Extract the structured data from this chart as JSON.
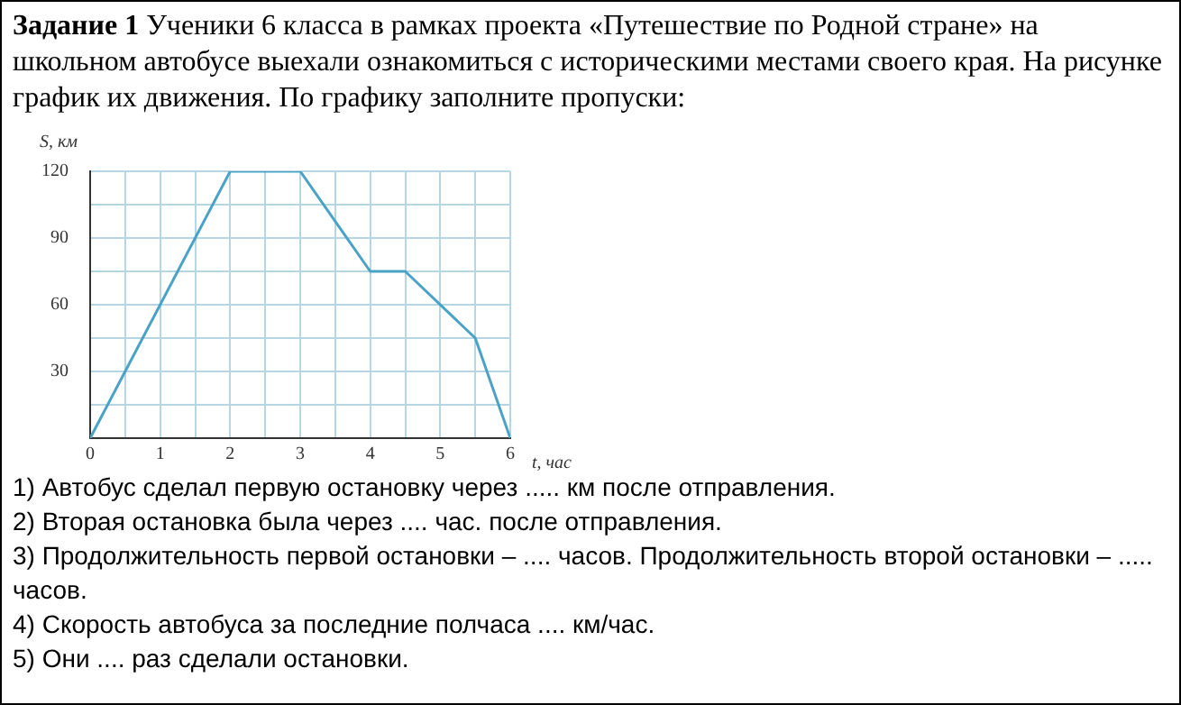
{
  "chart_data": {
    "type": "line",
    "title": "Задание 1",
    "subtitle": "Ученики 6 класса в рамках проекта «Путешествие по Родной стране» на школьном автобусе выехали ознакомиться с историческими местами своего края. На рисунке график их движения. По графику заполните пропуски:",
    "xlabel": "t, час",
    "ylabel": "S, км",
    "x": [
      0,
      2,
      3,
      4,
      4.5,
      5.5,
      6
    ],
    "series": [
      {
        "color": "#4aa3c7",
        "values": [
          0,
          120,
          120,
          75,
          75,
          45,
          0
        ]
      }
    ],
    "xlim": [
      0,
      6
    ],
    "ylim": [
      0,
      120
    ],
    "xticks": [
      0,
      {
        "value": 0.5,
        "label": null
      },
      1,
      {
        "value": 1.5,
        "label": null
      },
      2,
      {
        "value": 2.5,
        "label": null
      },
      3,
      {
        "value": 3.5,
        "label": null
      },
      4,
      {
        "value": 4.5,
        "label": null
      },
      5,
      {
        "value": 5.5,
        "label": null
      },
      6
    ],
    "yticks": [
      {
        "value": 0,
        "label": null
      },
      {
        "value": 15,
        "label": null
      },
      30,
      {
        "value": 45,
        "label": null
      },
      60,
      {
        "value": 75,
        "label": null
      },
      90,
      {
        "value": 105,
        "label": null
      },
      120
    ],
    "grid": true,
    "legend": false,
    "marker": "none",
    "line_style": "solid",
    "annotations": [
      "1) Автобус сделал первую остановку через .....  км после отправления.",
      "2) Вторая остановка была  через .... час. после отправления.",
      "3) Продолжительность первой остановки – .... часов. Продолжительность второй остановки – ..... часов.",
      "4) Скорость автобуса за последние полчаса .... км/час.",
      "5) Они .... раз сделали остановки."
    ]
  }
}
